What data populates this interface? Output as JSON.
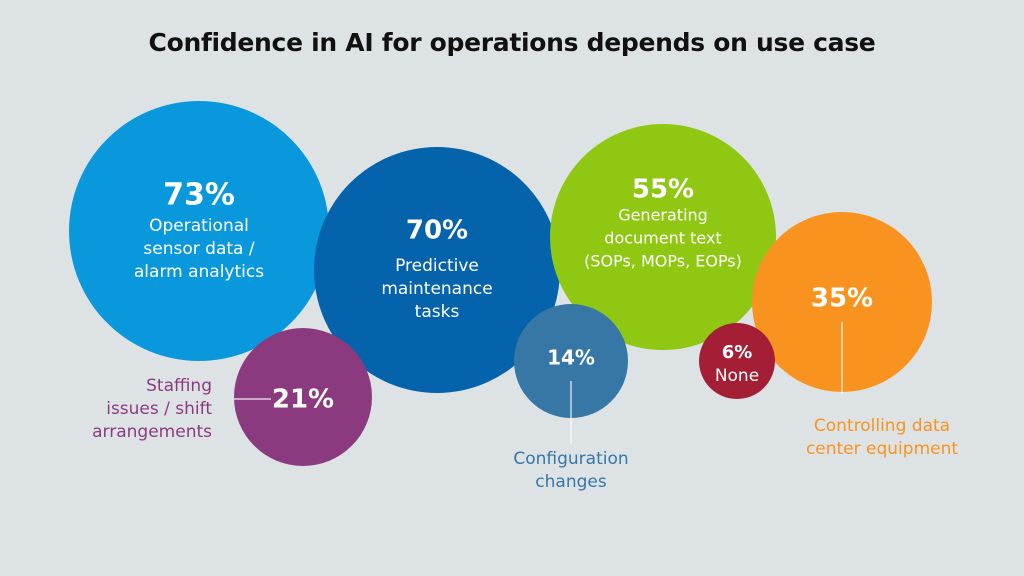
{
  "title": "Confidence in AI for operations depends on use case",
  "chart_data": {
    "type": "bubble",
    "title": "Confidence in AI for operations depends on use case",
    "unit": "%",
    "series": [
      {
        "name": "Operational sensor data / alarm analytics",
        "value": 73,
        "label_lines": [
          "Operational",
          "sensor data /",
          "alarm analytics"
        ],
        "label_inside": true,
        "color": "#0a98dc"
      },
      {
        "name": "Predictive maintenance tasks",
        "value": 70,
        "label_lines": [
          "Predictive",
          "maintenance",
          "tasks"
        ],
        "label_inside": true,
        "color": "#0563ab"
      },
      {
        "name": "Generating document text (SOPs, MOPs, EOPs)",
        "value": 55,
        "label_lines": [
          "Generating",
          "document text",
          "(SOPs, MOPs, EOPs)"
        ],
        "label_inside": true,
        "color": "#8fc713"
      },
      {
        "name": "Controlling data center equipment",
        "value": 35,
        "label_lines": [
          "Controlling data",
          "center equipment"
        ],
        "label_inside": false,
        "color": "#f99320"
      },
      {
        "name": "Staffing issues / shift arrangements",
        "value": 21,
        "label_lines": [
          "Staffing",
          "issues / shift",
          "arrangements"
        ],
        "label_inside": false,
        "color": "#8c3a80"
      },
      {
        "name": "Configuration changes",
        "value": 14,
        "label_lines": [
          "Configuration",
          "changes"
        ],
        "label_inside": false,
        "color": "#3677a6"
      },
      {
        "name": "None",
        "value": 6,
        "label_lines": [
          "None"
        ],
        "label_inside": true,
        "color": "#a41f35"
      }
    ]
  }
}
